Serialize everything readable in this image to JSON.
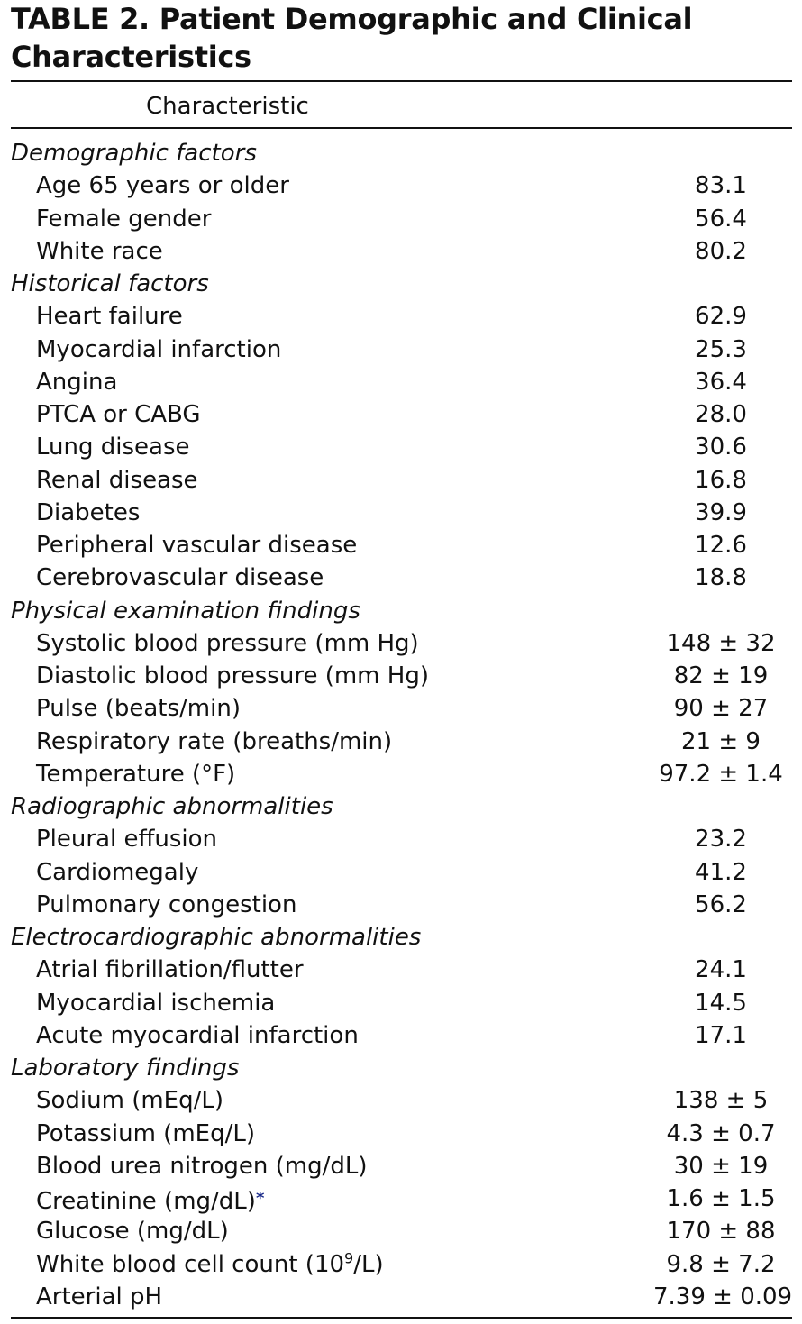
{
  "table": {
    "title": "TABLE 2. Patient Demographic and Clinical Characteristics",
    "column_header": "Characteristic",
    "rows": [
      {
        "type": "section",
        "label": "Demographic factors"
      },
      {
        "type": "item",
        "label": "Age 65 years or older",
        "value": "83.1"
      },
      {
        "type": "item",
        "label": "Female gender",
        "value": "56.4"
      },
      {
        "type": "item",
        "label": "White race",
        "value": "80.2"
      },
      {
        "type": "section",
        "label": "Historical factors"
      },
      {
        "type": "item",
        "label": "Heart failure",
        "value": "62.9"
      },
      {
        "type": "item",
        "label": "Myocardial infarction",
        "value": "25.3"
      },
      {
        "type": "item",
        "label": "Angina",
        "value": "36.4"
      },
      {
        "type": "item",
        "label": "PTCA or CABG",
        "value": "28.0"
      },
      {
        "type": "item",
        "label": "Lung disease",
        "value": "30.6"
      },
      {
        "type": "item",
        "label": "Renal disease",
        "value": "16.8"
      },
      {
        "type": "item",
        "label": "Diabetes",
        "value": "39.9"
      },
      {
        "type": "item",
        "label": "Peripheral vascular disease",
        "value": "12.6"
      },
      {
        "type": "item",
        "label": "Cerebrovascular disease",
        "value": "18.8"
      },
      {
        "type": "section",
        "label": "Physical examination findings"
      },
      {
        "type": "item",
        "label": "Systolic blood pressure (mm Hg)",
        "value": "148 ± 32"
      },
      {
        "type": "item",
        "label": "Diastolic blood pressure (mm Hg)",
        "value": "82 ± 19"
      },
      {
        "type": "item",
        "label": "Pulse (beats/min)",
        "value": "90 ± 27"
      },
      {
        "type": "item",
        "label": "Respiratory rate (breaths/min)",
        "value": "21 ± 9"
      },
      {
        "type": "item",
        "label": "Temperature (°F)",
        "value": "97.2 ± 1.4"
      },
      {
        "type": "section",
        "label": "Radiographic abnormalities"
      },
      {
        "type": "item",
        "label": "Pleural effusion",
        "value": "23.2"
      },
      {
        "type": "item",
        "label": "Cardiomegaly",
        "value": "41.2"
      },
      {
        "type": "item",
        "label": "Pulmonary congestion",
        "value": "56.2"
      },
      {
        "type": "section",
        "label": "Electrocardiographic abnormalities"
      },
      {
        "type": "item",
        "label": "Atrial fibrillation/flutter",
        "value": "24.1"
      },
      {
        "type": "item",
        "label": "Myocardial ischemia",
        "value": "14.5"
      },
      {
        "type": "item",
        "label": "Acute myocardial infarction",
        "value": "17.1"
      },
      {
        "type": "section",
        "label": "Laboratory findings"
      },
      {
        "type": "item",
        "label": "Sodium (mEq/L)",
        "value": "138 ± 5"
      },
      {
        "type": "item",
        "label": "Potassium (mEq/L)",
        "value": "4.3 ± 0.7"
      },
      {
        "type": "item",
        "label": "Blood urea nitrogen (mg/dL)",
        "value": "30 ± 19"
      },
      {
        "type": "item",
        "label": "Creatinine (mg/dL)",
        "footnote_mark": "*",
        "value": "1.6 ± 1.5"
      },
      {
        "type": "item",
        "label": "Glucose (mg/dL)",
        "value": "170 ± 88"
      },
      {
        "type": "item",
        "label": "White blood cell count (10",
        "superscript": "9",
        "label_suffix": "/L)",
        "value": "9.8 ± 7.2"
      },
      {
        "type": "item",
        "label": "Arterial pH",
        "value": "7.39 ± 0.09"
      }
    ]
  }
}
